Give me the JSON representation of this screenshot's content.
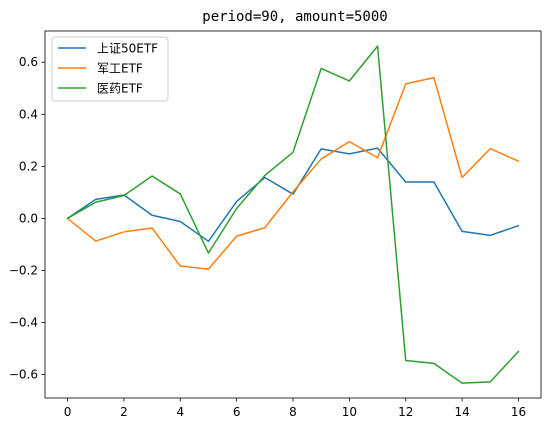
{
  "chart_data": {
    "type": "line",
    "title": "period=90, amount=5000",
    "xlabel": "",
    "ylabel": "",
    "x": [
      0,
      1,
      2,
      3,
      4,
      5,
      6,
      7,
      8,
      9,
      10,
      11,
      12,
      13,
      14,
      15,
      16
    ],
    "xticks": [
      0,
      2,
      4,
      6,
      8,
      10,
      12,
      14,
      16
    ],
    "xtick_labels": [
      "0",
      "2",
      "4",
      "6",
      "8",
      "10",
      "12",
      "14",
      "16"
    ],
    "yticks": [
      -0.6,
      -0.4,
      -0.2,
      0.0,
      0.2,
      0.4,
      0.6
    ],
    "ytick_labels": [
      "−0.6",
      "−0.4",
      "−0.2",
      "0.0",
      "0.2",
      "0.4",
      "0.6"
    ],
    "xlim": [
      -0.8,
      16.8
    ],
    "ylim": [
      -0.69,
      0.72
    ],
    "grid": false,
    "legend_position": "top-left",
    "series": [
      {
        "name": "上证50ETF",
        "color": "#1f77b4",
        "values": [
          0.0,
          0.073,
          0.09,
          0.012,
          -0.012,
          -0.088,
          0.065,
          0.157,
          0.093,
          0.267,
          0.248,
          0.27,
          0.14,
          0.14,
          -0.05,
          -0.065,
          -0.028
        ]
      },
      {
        "name": "军工ETF",
        "color": "#ff7f0e",
        "values": [
          0.0,
          -0.087,
          -0.052,
          -0.037,
          -0.183,
          -0.195,
          -0.068,
          -0.036,
          0.102,
          0.228,
          0.295,
          0.233,
          0.517,
          0.541,
          0.157,
          0.268,
          0.22
        ]
      },
      {
        "name": "医药ETF",
        "color": "#2ca02c",
        "values": [
          0.0,
          0.062,
          0.088,
          0.163,
          0.094,
          -0.133,
          0.038,
          0.165,
          0.254,
          0.576,
          0.528,
          0.662,
          -0.546,
          -0.557,
          -0.633,
          -0.628,
          -0.511
        ]
      }
    ]
  }
}
